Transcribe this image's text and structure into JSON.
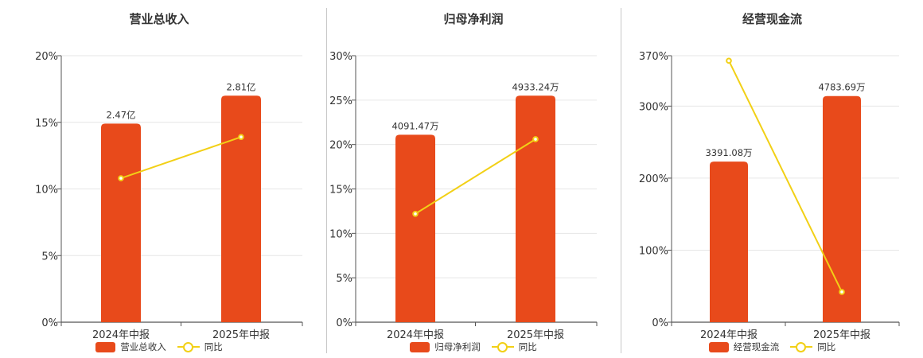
{
  "colors": {
    "bar": "#e84a1b",
    "line": "#f2d016",
    "grid": "#e6e6e6",
    "axis": "#555555"
  },
  "chart_data": [
    {
      "type": "bar",
      "title": "营业总收入",
      "categories": [
        "2024年中报",
        "2025年中报"
      ],
      "yticks": [
        "20%",
        "15%",
        "10%",
        "5%",
        "0%"
      ],
      "ylim": [
        0,
        20
      ],
      "series": [
        {
          "name": "营业总收入",
          "type": "bar",
          "values": [
            14.9,
            17.0
          ],
          "labels": [
            "2.47亿",
            "2.81亿"
          ]
        },
        {
          "name": "同比",
          "type": "line",
          "values": [
            10.8,
            13.9
          ]
        }
      ],
      "legend": "bottom-center",
      "grid": true
    },
    {
      "type": "bar",
      "title": "归母净利润",
      "categories": [
        "2024年中报",
        "2025年中报"
      ],
      "yticks": [
        "30%",
        "25%",
        "20%",
        "15%",
        "10%",
        "5%",
        "0%"
      ],
      "ylim": [
        0,
        30
      ],
      "series": [
        {
          "name": "归母净利润",
          "type": "bar",
          "values": [
            21.1,
            25.5
          ],
          "labels": [
            "4091.47万",
            "4933.24万"
          ]
        },
        {
          "name": "同比",
          "type": "line",
          "values": [
            12.2,
            20.6
          ]
        }
      ],
      "legend": "bottom-center",
      "grid": true
    },
    {
      "type": "bar",
      "title": "经营现金流",
      "categories": [
        "2024年中报",
        "2025年中报"
      ],
      "yticks": [
        "370%",
        "300%",
        "200%",
        "100%",
        "0%"
      ],
      "ylim": [
        0,
        370
      ],
      "series": [
        {
          "name": "经营现金流",
          "type": "bar",
          "values": [
            223,
            314
          ],
          "labels": [
            "3391.08万",
            "4783.69万"
          ]
        },
        {
          "name": "同比",
          "type": "line",
          "values": [
            363,
            42
          ]
        }
      ],
      "legend": "bottom-center",
      "grid": true
    }
  ]
}
